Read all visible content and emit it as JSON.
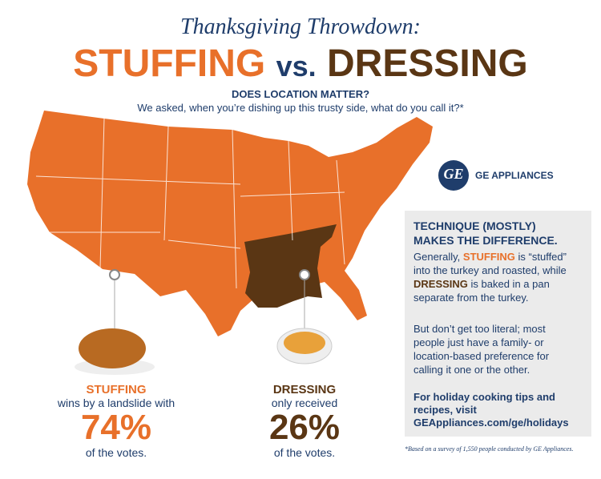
{
  "header": {
    "kicker": "Thanksgiving Throwdown:",
    "left_word": "STUFFING",
    "versus": "vs.",
    "right_word": "DRESSING",
    "question": "DOES LOCATION MATTER?",
    "subtitle": "We asked, when you’re dishing up this trusty side, what do you call it?*"
  },
  "brand": {
    "logo": "GE",
    "name": "GE APPLIANCES"
  },
  "panel": {
    "heading": [
      "TECHNIQUE (MOSTLY)",
      "MAKES THE DIFFERENCE."
    ],
    "paragraph1": [
      "Generally, ",
      "STUFFING",
      " is “stuffed” into the turkey and roasted, while ",
      "DRESSING",
      " is baked in a pan separate from the turkey."
    ],
    "paragraph2": "But don’t get too literal; most people just have a family- or location-based preference for calling it one or the other.",
    "cta": [
      "For holiday cooking tips and recipes, visit",
      "GEAppliances.com/ge/holidays"
    ]
  },
  "stuffing": {
    "name": "STUFFING",
    "line": "wins by a landslide with",
    "share": "74%",
    "tail": "of the votes."
  },
  "dressing": {
    "name": "DRESSING",
    "line": "only received",
    "share": "26%",
    "tail": "of the votes."
  },
  "footnote": "*Based on a survey of 1,550 people conducted by GE Appliances."
}
